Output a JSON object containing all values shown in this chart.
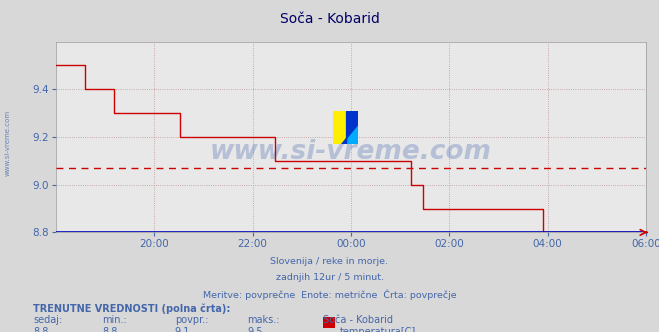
{
  "title": "Soča - Kobarid",
  "bg_color": "#d8d8d8",
  "plot_bg_color": "#e8e8e8",
  "line_color": "#cc0000",
  "avg_line_color": "#cc0000",
  "avg_line_value": 9.07,
  "ylim": [
    8.8,
    9.6
  ],
  "yticks": [
    8.8,
    9.0,
    9.2,
    9.4
  ],
  "tick_color": "#4466aa",
  "grid_color": "#bb8888",
  "title_color": "#000066",
  "subtitle_lines": [
    "Slovenija / reke in morje.",
    "zadnjih 12ur / 5 minut.",
    "Meritve: povprečne  Enote: metrične  Črta: povprečje"
  ],
  "footer_label1": "TRENUTNE VREDNOSTI (polna črta):",
  "footer_cols": [
    "sedaj:",
    "min.:",
    "povpr.:",
    "maks.:",
    "Soča - Kobarid"
  ],
  "footer_vals": [
    "8,8",
    "8,8",
    "9,1",
    "9,5",
    "temperatura[C]"
  ],
  "watermark_text": "www.si-vreme.com",
  "x_labels": [
    "20:00",
    "22:00",
    "00:00",
    "02:00",
    "04:00",
    "06:00"
  ],
  "side_label": "www.si-vreme.com",
  "temp_data": [
    9.5,
    9.5,
    9.5,
    9.5,
    9.5,
    9.5,
    9.5,
    9.4,
    9.4,
    9.4,
    9.4,
    9.4,
    9.4,
    9.4,
    9.3,
    9.3,
    9.3,
    9.3,
    9.3,
    9.3,
    9.3,
    9.3,
    9.3,
    9.3,
    9.3,
    9.3,
    9.3,
    9.3,
    9.3,
    9.3,
    9.2,
    9.2,
    9.2,
    9.2,
    9.2,
    9.2,
    9.2,
    9.2,
    9.2,
    9.2,
    9.2,
    9.2,
    9.2,
    9.2,
    9.2,
    9.2,
    9.2,
    9.2,
    9.2,
    9.2,
    9.2,
    9.2,
    9.2,
    9.1,
    9.1,
    9.1,
    9.1,
    9.1,
    9.1,
    9.1,
    9.1,
    9.1,
    9.1,
    9.1,
    9.1,
    9.1,
    9.1,
    9.1,
    9.1,
    9.1,
    9.1,
    9.1,
    9.1,
    9.1,
    9.1,
    9.1,
    9.1,
    9.1,
    9.1,
    9.1,
    9.1,
    9.1,
    9.1,
    9.1,
    9.1,
    9.1,
    9.0,
    9.0,
    9.0,
    8.9,
    8.9,
    8.9,
    8.9,
    8.9,
    8.9,
    8.9,
    8.9,
    8.9,
    8.9,
    8.9,
    8.9,
    8.9,
    8.9,
    8.9,
    8.9,
    8.9,
    8.9,
    8.9,
    8.9,
    8.9,
    8.9,
    8.9,
    8.9,
    8.9,
    8.9,
    8.9,
    8.9,
    8.9,
    8.8,
    8.8,
    8.8,
    8.8,
    8.8,
    8.8,
    8.8,
    8.8,
    8.8,
    8.8,
    8.8,
    8.8,
    8.8,
    8.8,
    8.8,
    8.8,
    8.8,
    8.8,
    8.8,
    8.8,
    8.8,
    8.8,
    8.8,
    8.8,
    8.8,
    8.8
  ],
  "n_points": 146
}
